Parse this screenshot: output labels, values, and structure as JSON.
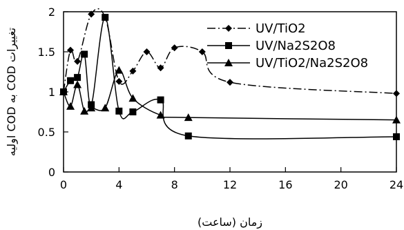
{
  "chart_data": {
    "type": "line",
    "xlabel": "زمان (ساعت)",
    "ylabel": "تغییرات COD به COD اولیه",
    "xlim": [
      0,
      24
    ],
    "ylim": [
      0,
      2
    ],
    "x_ticks": [
      "0",
      "4",
      "8",
      "12",
      "16",
      "20",
      "24"
    ],
    "y_ticks": [
      "0",
      "0.5",
      "1",
      "1.5",
      "2"
    ],
    "grid": false,
    "legend_position": "top-right",
    "series": [
      {
        "name": "UV/TiO2",
        "marker": "diamond",
        "line_style": "dash-dot",
        "x": [
          0,
          0.5,
          1,
          2,
          3,
          4,
          5,
          6,
          7,
          8,
          10,
          12,
          24
        ],
        "y": [
          1.0,
          1.52,
          1.38,
          1.97,
          1.93,
          1.13,
          1.26,
          1.5,
          1.3,
          1.55,
          1.5,
          1.12,
          0.98
        ]
      },
      {
        "name": "UV/Na2S2O8",
        "marker": "square",
        "line_style": "solid",
        "x": [
          0,
          0.5,
          1,
          1.5,
          2,
          3,
          4,
          5,
          7,
          9,
          24
        ],
        "y": [
          1.0,
          1.14,
          1.18,
          1.47,
          0.84,
          1.93,
          0.76,
          0.75,
          0.9,
          0.45,
          0.44
        ]
      },
      {
        "name": "UV/TiO2/Na2S2O8",
        "marker": "triangle",
        "line_style": "solid",
        "x": [
          0,
          0.5,
          1,
          1.5,
          2,
          3,
          4,
          5,
          7,
          9,
          24
        ],
        "y": [
          1.0,
          0.82,
          1.09,
          0.76,
          0.8,
          0.8,
          1.27,
          0.92,
          0.71,
          0.68,
          0.65
        ]
      }
    ]
  }
}
